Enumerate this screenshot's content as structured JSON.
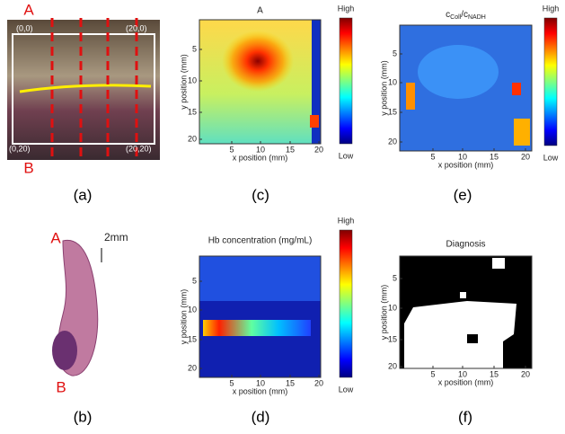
{
  "panel_a": {
    "label": "(a)",
    "marker_top": "A",
    "marker_bottom": "B",
    "corners": [
      "(0,0)",
      "(20,0)",
      "(0,20)",
      "(20,20)"
    ]
  },
  "panel_b": {
    "label": "(b)",
    "marker_top": "A",
    "marker_bottom": "B",
    "scale_bar": "2mm"
  },
  "panel_c": {
    "label": "(c)",
    "title": "A",
    "x_axis_label": "x position (mm)",
    "y_axis_label": "y position (mm)",
    "x_ticks": [
      "5",
      "10",
      "15",
      "20"
    ],
    "y_ticks": [
      "5",
      "10",
      "15",
      "20"
    ],
    "colorbar_high": "High",
    "colorbar_low": "Low"
  },
  "panel_e": {
    "label": "(e)",
    "title_parts": [
      "c",
      "Coll",
      "/c",
      "NADH"
    ],
    "x_axis_label": "x position (mm)",
    "y_axis_label": "y position (mm)",
    "x_ticks": [
      "5",
      "10",
      "15",
      "20"
    ],
    "y_ticks": [
      "5",
      "10",
      "15",
      "20"
    ],
    "colorbar_high": "High",
    "colorbar_low": "Low"
  },
  "panel_d": {
    "label": "(d)",
    "title": "Hb concentration (mg/mL)",
    "x_axis_label": "x position (mm)",
    "y_axis_label": "y position (mm)",
    "x_ticks": [
      "5",
      "10",
      "15",
      "20"
    ],
    "y_ticks": [
      "5",
      "10",
      "15",
      "20"
    ],
    "colorbar_high": "High",
    "colorbar_low": "Low"
  },
  "panel_f": {
    "label": "(f)",
    "title": "Diagnosis",
    "x_axis_label": "x position (mm)",
    "y_axis_label": "y position (mm)",
    "x_ticks": [
      "5",
      "10",
      "15",
      "20"
    ],
    "y_ticks": [
      "5",
      "10",
      "15",
      "20"
    ]
  }
}
